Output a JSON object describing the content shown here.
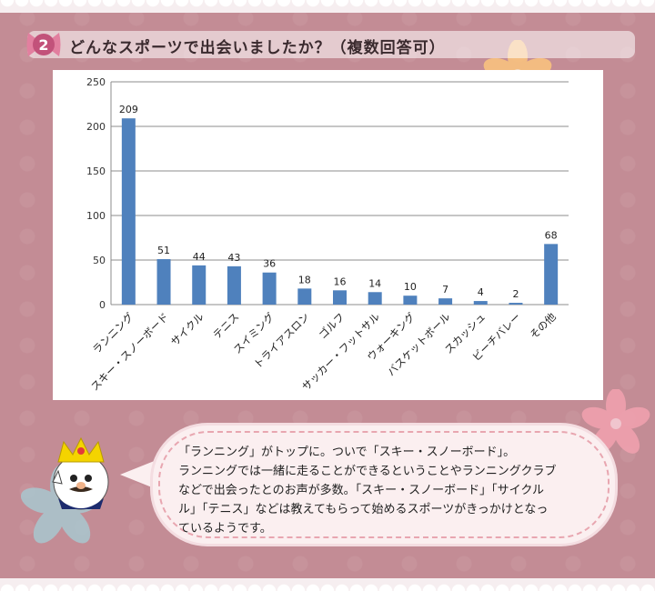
{
  "header": {
    "number": "2",
    "title": "どんなスポーツで出会いましたか？（複数回答可）"
  },
  "chart_data": {
    "type": "bar",
    "categories": [
      "ランニング",
      "スキー・スノーボード",
      "サイクル",
      "テニス",
      "スイミング",
      "トライアスロン",
      "ゴルフ",
      "サッカー・フットサル",
      "ウォーキング",
      "バスケットボール",
      "スカッシュ",
      "ビーチバレー",
      "その他"
    ],
    "values": [
      209,
      51,
      44,
      43,
      36,
      18,
      16,
      14,
      10,
      7,
      4,
      2,
      68
    ],
    "ylim": [
      0,
      250
    ],
    "yticks": [
      0,
      50,
      100,
      150,
      200,
      250
    ],
    "grid": true,
    "bar_color": "#4f81bd",
    "data_labels": true
  },
  "comment": {
    "lines": [
      "「ランニング」がトップに。ついで「スキー・スノーボード」。",
      "ランニングでは一緒に走ることができるということやランニングクラブ",
      "などで出会ったとのお声が多数。「スキー・スノーボード」「サイクル",
      "ル」「テニス」などは教えてもらって始めるスポーツがきっかけとなっ",
      "ているようです。"
    ]
  },
  "colors": {
    "background": "#c38c95",
    "bubble": "#fbeff0",
    "bubble_border": "#e8a6b0",
    "bar": "#4f81bd"
  }
}
